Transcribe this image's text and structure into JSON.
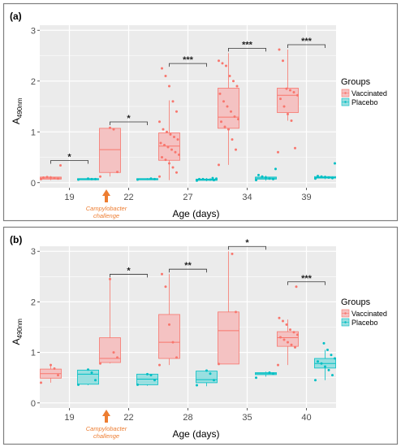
{
  "figure": {
    "border_color": "#7f7f7f",
    "panel_bg": "#ebebeb",
    "grid_color": "#ffffff",
    "vaccinated_color": "#f8766d",
    "vaccinated_fill": "#f4c2c2",
    "placebo_color": "#00bfc4",
    "placebo_fill": "#99dfe0",
    "annotation_color": "#ed7d31"
  },
  "chart_data": [
    {
      "type": "box",
      "panel_label": "(a)",
      "ylabel_main": "A",
      "ylabel_sub": "490nm",
      "xlabel": "Age (days)",
      "ylim": [
        -0.1,
        3.1
      ],
      "yticks": [
        0,
        1,
        2,
        3
      ],
      "ytick_labels": [
        "0",
        "1",
        "2",
        "3"
      ],
      "categories": [
        "19",
        "22",
        "27",
        "34",
        "39"
      ],
      "grid": true,
      "legend_position": "right",
      "legend_title": "Groups",
      "series": [
        {
          "name": "Vaccinated",
          "boxes": [
            {
              "q1": 0.07,
              "median": 0.09,
              "q3": 0.11,
              "whisker_low": 0.05,
              "whisker_high": 0.13,
              "points": [
                0.07,
                0.08,
                0.09,
                0.1,
                0.11,
                0.1,
                0.34
              ]
            },
            {
              "q1": 0.2,
              "median": 0.65,
              "q3": 1.07,
              "whisker_low": 0.12,
              "whisker_high": 1.1,
              "points": [
                0.12,
                0.21,
                1.05,
                1.08
              ]
            },
            {
              "q1": 0.44,
              "median": 0.72,
              "q3": 0.98,
              "whisker_low": 0.05,
              "whisker_high": 1.62,
              "points": [
                0.12,
                0.2,
                0.3,
                0.38,
                0.45,
                0.5,
                0.55,
                0.6,
                0.65,
                0.7,
                0.74,
                0.78,
                0.85,
                0.9,
                0.95,
                1.0,
                1.05,
                1.2,
                1.4,
                1.6,
                1.9,
                2.1,
                2.25
              ]
            },
            {
              "q1": 1.07,
              "median": 1.29,
              "q3": 1.86,
              "whisker_low": 0.35,
              "whisker_high": 2.55,
              "points": [
                0.35,
                0.65,
                0.85,
                1.05,
                1.1,
                1.2,
                1.25,
                1.3,
                1.4,
                1.5,
                1.6,
                1.75,
                1.9,
                2.0,
                2.1,
                2.3,
                2.35,
                2.4
              ]
            },
            {
              "q1": 1.38,
              "median": 1.72,
              "q3": 1.86,
              "whisker_low": 1.22,
              "whisker_high": 2.62,
              "points": [
                0.6,
                0.68,
                1.22,
                1.35,
                1.5,
                1.65,
                1.72,
                1.78,
                1.82,
                1.85,
                2.4,
                2.62
              ]
            }
          ]
        },
        {
          "name": "Placebo",
          "boxes": [
            {
              "q1": 0.06,
              "median": 0.07,
              "q3": 0.08,
              "whisker_low": 0.05,
              "whisker_high": 0.09,
              "points": [
                0.06,
                0.07,
                0.07,
                0.08
              ]
            },
            {
              "q1": 0.06,
              "median": 0.07,
              "q3": 0.08,
              "whisker_low": 0.05,
              "whisker_high": 0.09,
              "points": [
                0.06,
                0.07,
                0.08
              ]
            },
            {
              "q1": 0.05,
              "median": 0.06,
              "q3": 0.07,
              "whisker_low": 0.03,
              "whisker_high": 0.09,
              "points": [
                0.04,
                0.05,
                0.06,
                0.06,
                0.07,
                0.07,
                0.08,
                0.09
              ]
            },
            {
              "q1": 0.07,
              "median": 0.09,
              "q3": 0.11,
              "whisker_low": 0.04,
              "whisker_high": 0.14,
              "points": [
                0.05,
                0.07,
                0.08,
                0.1,
                0.12,
                0.15,
                0.27
              ]
            },
            {
              "q1": 0.09,
              "median": 0.1,
              "q3": 0.12,
              "whisker_low": 0.07,
              "whisker_high": 0.14,
              "points": [
                0.08,
                0.09,
                0.1,
                0.11,
                0.12,
                0.13,
                0.38
              ]
            }
          ]
        }
      ],
      "significance": [
        "*",
        "*",
        "***",
        "***",
        "***"
      ],
      "annotation": {
        "line1": "Campylobacter",
        "line2": "challenge"
      }
    },
    {
      "type": "box",
      "panel_label": "(b)",
      "ylabel_main": "A",
      "ylabel_sub": "490nm",
      "xlabel": "Age (days)",
      "ylim": [
        -0.1,
        3.1
      ],
      "yticks": [
        0,
        1,
        2,
        3
      ],
      "ytick_labels": [
        "0",
        "1",
        "2",
        "3"
      ],
      "categories": [
        "19",
        "22",
        "28",
        "35",
        "40"
      ],
      "grid": true,
      "legend_position": "right",
      "legend_title": "Groups",
      "series": [
        {
          "name": "Vaccinated",
          "boxes": [
            {
              "q1": 0.49,
              "median": 0.58,
              "q3": 0.67,
              "whisker_low": 0.4,
              "whisker_high": 0.75,
              "points": [
                0.4,
                0.55,
                0.68,
                0.75
              ]
            },
            {
              "q1": 0.8,
              "median": 0.88,
              "q3": 1.29,
              "whisker_low": 0.78,
              "whisker_high": 2.45,
              "points": [
                0.78,
                0.9,
                1.0,
                2.45
              ]
            },
            {
              "q1": 0.88,
              "median": 1.2,
              "q3": 1.75,
              "whisker_low": 0.75,
              "whisker_high": 2.55,
              "points": [
                0.75,
                0.9,
                1.2,
                1.55,
                2.3,
                2.55
              ]
            },
            {
              "q1": 0.77,
              "median": 1.43,
              "q3": 1.8,
              "whisker_low": 0.77,
              "whisker_high": 3.0,
              "points": [
                0.77,
                1.8,
                2.95
              ]
            },
            {
              "q1": 1.12,
              "median": 1.29,
              "q3": 1.41,
              "whisker_low": 0.75,
              "whisker_high": 1.65,
              "points": [
                0.75,
                1.1,
                1.15,
                1.2,
                1.25,
                1.3,
                1.35,
                1.4,
                1.45,
                1.55,
                1.62,
                1.68,
                2.3
              ]
            }
          ]
        },
        {
          "name": "Placebo",
          "boxes": [
            {
              "q1": 0.37,
              "median": 0.57,
              "q3": 0.65,
              "whisker_low": 0.35,
              "whisker_high": 0.68,
              "points": [
                0.36,
                0.45,
                0.6,
                0.66
              ]
            },
            {
              "q1": 0.36,
              "median": 0.47,
              "q3": 0.57,
              "whisker_low": 0.34,
              "whisker_high": 0.58,
              "points": [
                0.36,
                0.45,
                0.55,
                0.57
              ]
            },
            {
              "q1": 0.4,
              "median": 0.46,
              "q3": 0.63,
              "whisker_low": 0.33,
              "whisker_high": 0.65,
              "points": [
                0.35,
                0.45,
                0.58,
                0.64
              ]
            },
            {
              "q1": 0.56,
              "median": 0.58,
              "q3": 0.6,
              "whisker_low": 0.52,
              "whisker_high": 0.62,
              "points": [
                0.5,
                0.58,
                0.6
              ]
            },
            {
              "q1": 0.69,
              "median": 0.78,
              "q3": 0.88,
              "whisker_low": 0.45,
              "whisker_high": 1.05,
              "points": [
                0.45,
                0.55,
                0.65,
                0.72,
                0.78,
                0.82,
                0.88,
                0.95,
                1.05,
                1.18
              ]
            }
          ]
        }
      ],
      "significance": [
        "",
        "*",
        "**",
        "*",
        "***"
      ],
      "annotation": {
        "line1": "Campylobacter",
        "line2": "challenge"
      }
    }
  ]
}
